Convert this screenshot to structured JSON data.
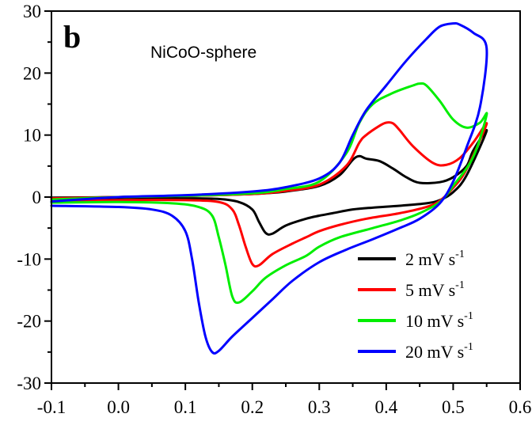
{
  "chart_data": {
    "type": "line",
    "panel_label": "b",
    "annotation": "NiCoO-sphere",
    "title": "",
    "xlabel": "",
    "ylabel": "",
    "xlim": [
      -0.1,
      0.6
    ],
    "ylim": [
      -30,
      30
    ],
    "x_ticks": [
      -0.1,
      0.0,
      0.1,
      0.2,
      0.3,
      0.4,
      0.5,
      0.6
    ],
    "x_tick_labels": [
      "-0.1",
      "0.0",
      "0.1",
      "0.2",
      "0.3",
      "0.4",
      "0.5",
      "0.6"
    ],
    "y_ticks": [
      -30,
      -20,
      -10,
      0,
      10,
      20,
      30
    ],
    "y_tick_labels": [
      "-30",
      "-20",
      "-10",
      "0",
      "10",
      "20",
      "30"
    ],
    "grid": false,
    "legend_position": "bottom-right",
    "series": [
      {
        "name": "2 mV s",
        "name_sup": "-1",
        "color": "#000000",
        "points": [
          [
            -0.1,
            -0.3
          ],
          [
            0.0,
            -0.2
          ],
          [
            0.1,
            -0.2
          ],
          [
            0.15,
            -0.3
          ],
          [
            0.18,
            -0.8
          ],
          [
            0.2,
            -2.0
          ],
          [
            0.21,
            -4.0
          ],
          [
            0.22,
            -5.8
          ],
          [
            0.23,
            -5.9
          ],
          [
            0.25,
            -4.6
          ],
          [
            0.28,
            -3.5
          ],
          [
            0.3,
            -3.0
          ],
          [
            0.32,
            -2.6
          ],
          [
            0.35,
            -2.0
          ],
          [
            0.38,
            -1.7
          ],
          [
            0.42,
            -1.4
          ],
          [
            0.46,
            -1.0
          ],
          [
            0.48,
            -0.5
          ],
          [
            0.5,
            0.8
          ],
          [
            0.52,
            3.5
          ],
          [
            0.55,
            10.7
          ],
          [
            0.53,
            7.5
          ],
          [
            0.52,
            5.0
          ],
          [
            0.5,
            3.2
          ],
          [
            0.48,
            2.4
          ],
          [
            0.45,
            2.3
          ],
          [
            0.43,
            3.2
          ],
          [
            0.41,
            4.6
          ],
          [
            0.39,
            5.8
          ],
          [
            0.37,
            6.2
          ],
          [
            0.36,
            6.6
          ],
          [
            0.35,
            6.0
          ],
          [
            0.33,
            3.5
          ],
          [
            0.3,
            1.8
          ],
          [
            0.25,
            0.9
          ],
          [
            0.2,
            0.5
          ],
          [
            0.1,
            0.2
          ],
          [
            0.0,
            0.0
          ],
          [
            -0.1,
            -0.1
          ]
        ]
      },
      {
        "name": "5 mV s",
        "name_sup": "-1",
        "color": "#ff0000",
        "points": [
          [
            -0.1,
            -0.7
          ],
          [
            0.0,
            -0.5
          ],
          [
            0.1,
            -0.5
          ],
          [
            0.15,
            -0.8
          ],
          [
            0.17,
            -2.0
          ],
          [
            0.18,
            -4.5
          ],
          [
            0.19,
            -8.0
          ],
          [
            0.2,
            -10.8
          ],
          [
            0.21,
            -11.0
          ],
          [
            0.23,
            -9.2
          ],
          [
            0.26,
            -7.5
          ],
          [
            0.28,
            -6.5
          ],
          [
            0.3,
            -5.5
          ],
          [
            0.33,
            -4.5
          ],
          [
            0.37,
            -3.5
          ],
          [
            0.42,
            -2.6
          ],
          [
            0.46,
            -1.6
          ],
          [
            0.48,
            -0.6
          ],
          [
            0.5,
            1.5
          ],
          [
            0.52,
            4.5
          ],
          [
            0.55,
            11.8
          ],
          [
            0.53,
            8.8
          ],
          [
            0.51,
            6.3
          ],
          [
            0.49,
            5.2
          ],
          [
            0.47,
            5.5
          ],
          [
            0.44,
            8.2
          ],
          [
            0.42,
            10.8
          ],
          [
            0.41,
            11.9
          ],
          [
            0.4,
            12.0
          ],
          [
            0.39,
            11.5
          ],
          [
            0.37,
            10.0
          ],
          [
            0.36,
            8.8
          ],
          [
            0.34,
            5.0
          ],
          [
            0.3,
            2.0
          ],
          [
            0.25,
            1.0
          ],
          [
            0.2,
            0.5
          ],
          [
            0.1,
            0.2
          ],
          [
            0.0,
            0.0
          ],
          [
            -0.1,
            -0.2
          ]
        ]
      },
      {
        "name": "10 mV s",
        "name_sup": "-1",
        "color": "#00ee00",
        "points": [
          [
            -0.1,
            -0.9
          ],
          [
            0.0,
            -0.8
          ],
          [
            0.08,
            -1.0
          ],
          [
            0.12,
            -1.6
          ],
          [
            0.14,
            -3.0
          ],
          [
            0.15,
            -6.5
          ],
          [
            0.16,
            -11.0
          ],
          [
            0.17,
            -16.0
          ],
          [
            0.18,
            -17.0
          ],
          [
            0.2,
            -15.2
          ],
          [
            0.22,
            -13.0
          ],
          [
            0.25,
            -11.0
          ],
          [
            0.28,
            -9.5
          ],
          [
            0.3,
            -8.0
          ],
          [
            0.33,
            -6.5
          ],
          [
            0.38,
            -5.0
          ],
          [
            0.42,
            -3.8
          ],
          [
            0.45,
            -2.6
          ],
          [
            0.48,
            -0.8
          ],
          [
            0.5,
            1.8
          ],
          [
            0.53,
            6.5
          ],
          [
            0.55,
            13.3
          ],
          [
            0.54,
            12.0
          ],
          [
            0.52,
            11.2
          ],
          [
            0.5,
            12.5
          ],
          [
            0.48,
            15.5
          ],
          [
            0.46,
            18.0
          ],
          [
            0.45,
            18.3
          ],
          [
            0.44,
            18.0
          ],
          [
            0.41,
            16.8
          ],
          [
            0.38,
            15.0
          ],
          [
            0.36,
            12.0
          ],
          [
            0.34,
            7.0
          ],
          [
            0.3,
            2.5
          ],
          [
            0.25,
            1.3
          ],
          [
            0.2,
            0.6
          ],
          [
            0.1,
            0.2
          ],
          [
            0.0,
            0.0
          ],
          [
            -0.1,
            -0.4
          ]
        ]
      },
      {
        "name": "20 mV s",
        "name_sup": "-1",
        "color": "#0000ff",
        "points": [
          [
            -0.1,
            -1.4
          ],
          [
            0.0,
            -1.6
          ],
          [
            0.05,
            -2.0
          ],
          [
            0.08,
            -3.0
          ],
          [
            0.1,
            -5.5
          ],
          [
            0.11,
            -10.0
          ],
          [
            0.12,
            -17.0
          ],
          [
            0.13,
            -22.5
          ],
          [
            0.14,
            -25.0
          ],
          [
            0.15,
            -24.8
          ],
          [
            0.17,
            -22.5
          ],
          [
            0.2,
            -19.5
          ],
          [
            0.23,
            -16.5
          ],
          [
            0.26,
            -13.5
          ],
          [
            0.3,
            -10.5
          ],
          [
            0.34,
            -8.5
          ],
          [
            0.38,
            -6.8
          ],
          [
            0.42,
            -5.0
          ],
          [
            0.45,
            -3.5
          ],
          [
            0.48,
            -1.0
          ],
          [
            0.5,
            2.5
          ],
          [
            0.52,
            8.0
          ],
          [
            0.54,
            14.5
          ],
          [
            0.55,
            24.0
          ],
          [
            0.53,
            26.5
          ],
          [
            0.51,
            27.8
          ],
          [
            0.5,
            28.0
          ],
          [
            0.48,
            27.5
          ],
          [
            0.46,
            25.5
          ],
          [
            0.43,
            22.0
          ],
          [
            0.4,
            18.0
          ],
          [
            0.37,
            14.0
          ],
          [
            0.35,
            10.0
          ],
          [
            0.33,
            5.5
          ],
          [
            0.3,
            3.0
          ],
          [
            0.25,
            1.6
          ],
          [
            0.2,
            0.9
          ],
          [
            0.1,
            0.3
          ],
          [
            0.0,
            0.0
          ],
          [
            -0.1,
            -0.7
          ]
        ]
      }
    ]
  }
}
